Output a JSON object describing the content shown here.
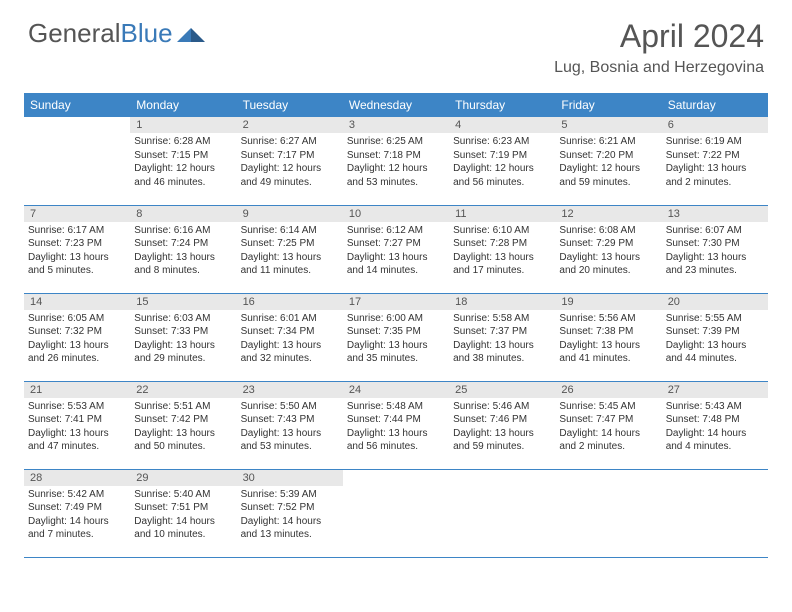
{
  "logo": {
    "text_gray": "General",
    "text_blue": "Blue"
  },
  "title": "April 2024",
  "location": "Lug, Bosnia and Herzegovina",
  "colors": {
    "header_bg": "#3d85c6",
    "header_text": "#ffffff",
    "daynum_bg": "#e8e8e8",
    "text": "#555555",
    "border": "#3d85c6"
  },
  "weekdays": [
    "Sunday",
    "Monday",
    "Tuesday",
    "Wednesday",
    "Thursday",
    "Friday",
    "Saturday"
  ],
  "weeks": [
    [
      null,
      {
        "n": "1",
        "sr": "Sunrise: 6:28 AM",
        "ss": "Sunset: 7:15 PM",
        "dl": "Daylight: 12 hours and 46 minutes."
      },
      {
        "n": "2",
        "sr": "Sunrise: 6:27 AM",
        "ss": "Sunset: 7:17 PM",
        "dl": "Daylight: 12 hours and 49 minutes."
      },
      {
        "n": "3",
        "sr": "Sunrise: 6:25 AM",
        "ss": "Sunset: 7:18 PM",
        "dl": "Daylight: 12 hours and 53 minutes."
      },
      {
        "n": "4",
        "sr": "Sunrise: 6:23 AM",
        "ss": "Sunset: 7:19 PM",
        "dl": "Daylight: 12 hours and 56 minutes."
      },
      {
        "n": "5",
        "sr": "Sunrise: 6:21 AM",
        "ss": "Sunset: 7:20 PM",
        "dl": "Daylight: 12 hours and 59 minutes."
      },
      {
        "n": "6",
        "sr": "Sunrise: 6:19 AM",
        "ss": "Sunset: 7:22 PM",
        "dl": "Daylight: 13 hours and 2 minutes."
      }
    ],
    [
      {
        "n": "7",
        "sr": "Sunrise: 6:17 AM",
        "ss": "Sunset: 7:23 PM",
        "dl": "Daylight: 13 hours and 5 minutes."
      },
      {
        "n": "8",
        "sr": "Sunrise: 6:16 AM",
        "ss": "Sunset: 7:24 PM",
        "dl": "Daylight: 13 hours and 8 minutes."
      },
      {
        "n": "9",
        "sr": "Sunrise: 6:14 AM",
        "ss": "Sunset: 7:25 PM",
        "dl": "Daylight: 13 hours and 11 minutes."
      },
      {
        "n": "10",
        "sr": "Sunrise: 6:12 AM",
        "ss": "Sunset: 7:27 PM",
        "dl": "Daylight: 13 hours and 14 minutes."
      },
      {
        "n": "11",
        "sr": "Sunrise: 6:10 AM",
        "ss": "Sunset: 7:28 PM",
        "dl": "Daylight: 13 hours and 17 minutes."
      },
      {
        "n": "12",
        "sr": "Sunrise: 6:08 AM",
        "ss": "Sunset: 7:29 PM",
        "dl": "Daylight: 13 hours and 20 minutes."
      },
      {
        "n": "13",
        "sr": "Sunrise: 6:07 AM",
        "ss": "Sunset: 7:30 PM",
        "dl": "Daylight: 13 hours and 23 minutes."
      }
    ],
    [
      {
        "n": "14",
        "sr": "Sunrise: 6:05 AM",
        "ss": "Sunset: 7:32 PM",
        "dl": "Daylight: 13 hours and 26 minutes."
      },
      {
        "n": "15",
        "sr": "Sunrise: 6:03 AM",
        "ss": "Sunset: 7:33 PM",
        "dl": "Daylight: 13 hours and 29 minutes."
      },
      {
        "n": "16",
        "sr": "Sunrise: 6:01 AM",
        "ss": "Sunset: 7:34 PM",
        "dl": "Daylight: 13 hours and 32 minutes."
      },
      {
        "n": "17",
        "sr": "Sunrise: 6:00 AM",
        "ss": "Sunset: 7:35 PM",
        "dl": "Daylight: 13 hours and 35 minutes."
      },
      {
        "n": "18",
        "sr": "Sunrise: 5:58 AM",
        "ss": "Sunset: 7:37 PM",
        "dl": "Daylight: 13 hours and 38 minutes."
      },
      {
        "n": "19",
        "sr": "Sunrise: 5:56 AM",
        "ss": "Sunset: 7:38 PM",
        "dl": "Daylight: 13 hours and 41 minutes."
      },
      {
        "n": "20",
        "sr": "Sunrise: 5:55 AM",
        "ss": "Sunset: 7:39 PM",
        "dl": "Daylight: 13 hours and 44 minutes."
      }
    ],
    [
      {
        "n": "21",
        "sr": "Sunrise: 5:53 AM",
        "ss": "Sunset: 7:41 PM",
        "dl": "Daylight: 13 hours and 47 minutes."
      },
      {
        "n": "22",
        "sr": "Sunrise: 5:51 AM",
        "ss": "Sunset: 7:42 PM",
        "dl": "Daylight: 13 hours and 50 minutes."
      },
      {
        "n": "23",
        "sr": "Sunrise: 5:50 AM",
        "ss": "Sunset: 7:43 PM",
        "dl": "Daylight: 13 hours and 53 minutes."
      },
      {
        "n": "24",
        "sr": "Sunrise: 5:48 AM",
        "ss": "Sunset: 7:44 PM",
        "dl": "Daylight: 13 hours and 56 minutes."
      },
      {
        "n": "25",
        "sr": "Sunrise: 5:46 AM",
        "ss": "Sunset: 7:46 PM",
        "dl": "Daylight: 13 hours and 59 minutes."
      },
      {
        "n": "26",
        "sr": "Sunrise: 5:45 AM",
        "ss": "Sunset: 7:47 PM",
        "dl": "Daylight: 14 hours and 2 minutes."
      },
      {
        "n": "27",
        "sr": "Sunrise: 5:43 AM",
        "ss": "Sunset: 7:48 PM",
        "dl": "Daylight: 14 hours and 4 minutes."
      }
    ],
    [
      {
        "n": "28",
        "sr": "Sunrise: 5:42 AM",
        "ss": "Sunset: 7:49 PM",
        "dl": "Daylight: 14 hours and 7 minutes."
      },
      {
        "n": "29",
        "sr": "Sunrise: 5:40 AM",
        "ss": "Sunset: 7:51 PM",
        "dl": "Daylight: 14 hours and 10 minutes."
      },
      {
        "n": "30",
        "sr": "Sunrise: 5:39 AM",
        "ss": "Sunset: 7:52 PM",
        "dl": "Daylight: 14 hours and 13 minutes."
      },
      null,
      null,
      null,
      null
    ]
  ]
}
